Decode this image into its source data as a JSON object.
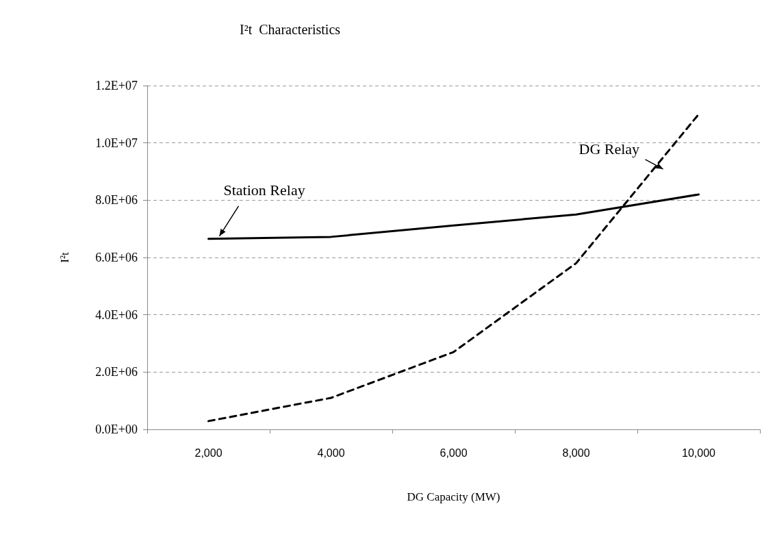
{
  "chart_data": {
    "type": "line",
    "title": "I²t  Characteristics",
    "xlabel": "DG Capacity (MW)",
    "ylabel": "I²t",
    "categories": [
      "2,000",
      "4,000",
      "6,000",
      "8,000",
      "10,000"
    ],
    "series": [
      {
        "name": "Station Relay",
        "color": "#000000",
        "line_style": "solid",
        "values": [
          6650000,
          6720000,
          7120000,
          7500000,
          8200000
        ]
      },
      {
        "name": "DG Relay",
        "color": "#000000",
        "line_style": "dashed",
        "values": [
          290000,
          1100000,
          2700000,
          5800000,
          11000000
        ]
      }
    ],
    "ylim": [
      0,
      12000000
    ],
    "yticks": [
      {
        "value": 0,
        "label": "0.0E+00"
      },
      {
        "value": 2000000,
        "label": "2.0E+06"
      },
      {
        "value": 4000000,
        "label": "4.0E+06"
      },
      {
        "value": 6000000,
        "label": "6.0E+06"
      },
      {
        "value": 8000000,
        "label": "8.0E+06"
      },
      {
        "value": 10000000,
        "label": "1.0E+07"
      },
      {
        "value": 12000000,
        "label": "1.2E+07"
      }
    ],
    "grid": "y",
    "legend": false,
    "marker": "none"
  }
}
